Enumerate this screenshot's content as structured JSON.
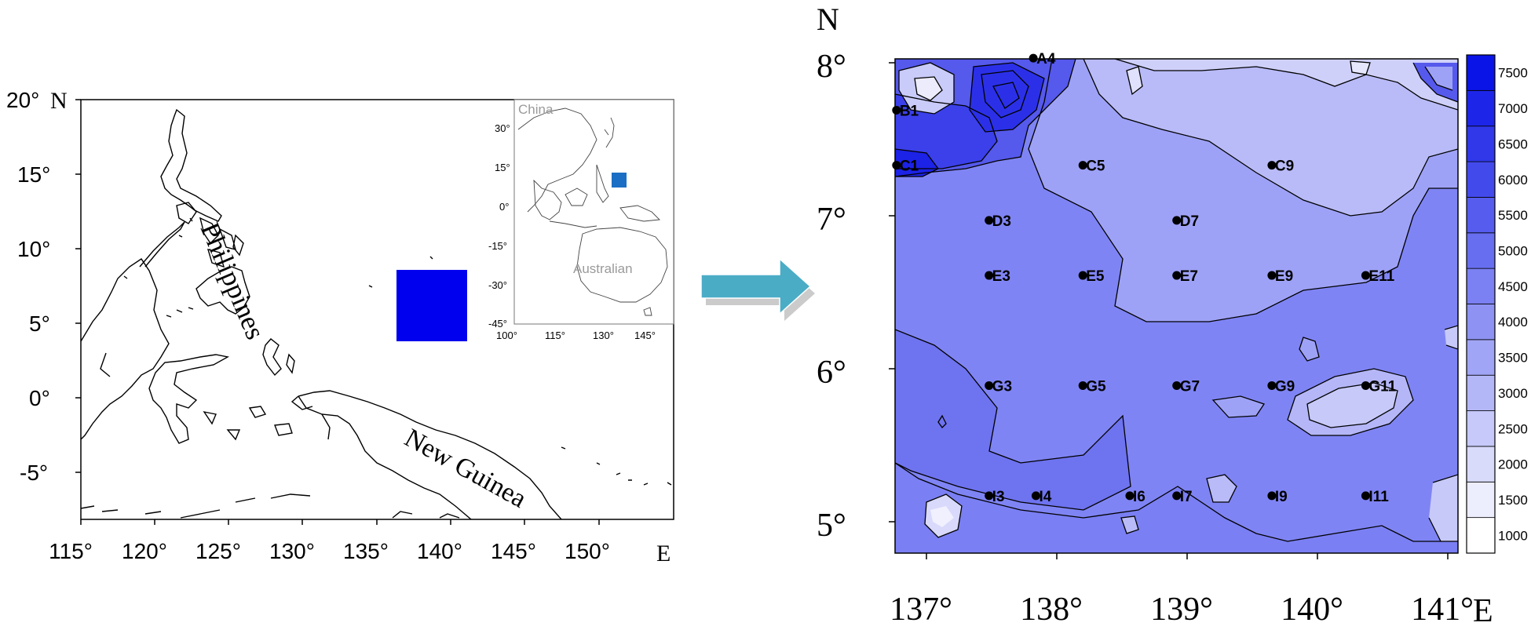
{
  "left_map": {
    "lat_ticks": [
      "20°",
      "15°",
      "10°",
      "5°",
      "0°",
      "-5°"
    ],
    "lat_unit": "N",
    "lon_ticks": [
      "115°",
      "120°",
      "125°",
      "130°",
      "135°",
      "140°",
      "145°",
      "150°"
    ],
    "lon_unit": "E",
    "labels": {
      "philippines": "Philippines",
      "new_guinea": "New Guinea"
    },
    "study_area_color": "#0000ee",
    "inset": {
      "lat_ticks": [
        "30°",
        "15°",
        "0°",
        "-15°",
        "-30°",
        "-45°"
      ],
      "lon_ticks": [
        "100°",
        "115°",
        "130°",
        "145°"
      ],
      "labels": {
        "china": "China",
        "australian": "Australian"
      },
      "marker_color": "#1a6fc4"
    }
  },
  "arrow_color": "#4bacc6",
  "right_map": {
    "north_label": "N",
    "east_label": "E",
    "lat_ticks": [
      "8°",
      "7°",
      "6°",
      "5°"
    ],
    "lon_ticks": [
      "137°",
      "138°",
      "139°",
      "140°",
      "141°"
    ],
    "stations": [
      {
        "name": "A4",
        "lon": 137.82,
        "lat": 8.03
      },
      {
        "name": "B1",
        "lon": 136.77,
        "lat": 7.69
      },
      {
        "name": "C1",
        "lon": 136.77,
        "lat": 7.33
      },
      {
        "name": "C5",
        "lon": 138.2,
        "lat": 7.33
      },
      {
        "name": "C9",
        "lon": 139.65,
        "lat": 7.33
      },
      {
        "name": "D3",
        "lon": 137.48,
        "lat": 6.97
      },
      {
        "name": "D7",
        "lon": 138.92,
        "lat": 6.97
      },
      {
        "name": "E3",
        "lon": 137.48,
        "lat": 6.61
      },
      {
        "name": "E5",
        "lon": 138.2,
        "lat": 6.61
      },
      {
        "name": "E7",
        "lon": 138.92,
        "lat": 6.61
      },
      {
        "name": "E9",
        "lon": 139.65,
        "lat": 6.61
      },
      {
        "name": "E11",
        "lon": 140.37,
        "lat": 6.61
      },
      {
        "name": "G3",
        "lon": 137.48,
        "lat": 5.89
      },
      {
        "name": "G5",
        "lon": 138.2,
        "lat": 5.89
      },
      {
        "name": "G7",
        "lon": 138.92,
        "lat": 5.89
      },
      {
        "name": "G9",
        "lon": 139.65,
        "lat": 5.89
      },
      {
        "name": "G11",
        "lon": 140.37,
        "lat": 5.89
      },
      {
        "name": "I3",
        "lon": 137.48,
        "lat": 5.17
      },
      {
        "name": "I4",
        "lon": 137.84,
        "lat": 5.17
      },
      {
        "name": "I6",
        "lon": 138.56,
        "lat": 5.17
      },
      {
        "name": "I7",
        "lon": 138.92,
        "lat": 5.17
      },
      {
        "name": "I9",
        "lon": 139.65,
        "lat": 5.17
      },
      {
        "name": "I11",
        "lon": 140.37,
        "lat": 5.17
      }
    ],
    "colorbar": {
      "levels": [
        1000,
        1500,
        2000,
        2500,
        3000,
        3500,
        4000,
        4500,
        5000,
        5500,
        6000,
        6500,
        7000,
        7500
      ],
      "labels": [
        "1000",
        "1500",
        "2000",
        "2500",
        "3000",
        "3500",
        "4000",
        "4500",
        "5000",
        "5500",
        "6000",
        "6500",
        "7000",
        "7500"
      ],
      "color_low": "#ffffff",
      "color_high": "#0a14e6"
    }
  }
}
